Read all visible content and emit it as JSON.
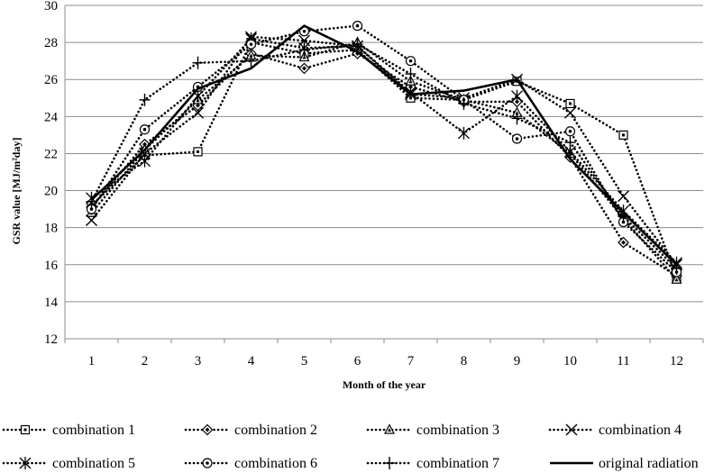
{
  "chart_data": {
    "type": "line",
    "xlabel": "Month of the year",
    "ylabel": "GSR value [MJ/m²day]",
    "categories": [
      "1",
      "2",
      "3",
      "4",
      "5",
      "6",
      "7",
      "8",
      "9",
      "10",
      "11",
      "12"
    ],
    "ylim": [
      12,
      30
    ],
    "yticks": [
      12,
      14,
      16,
      18,
      20,
      22,
      24,
      26,
      28,
      30
    ],
    "grid": "horizontal",
    "legend_position": "bottom",
    "series": [
      {
        "name": "combination 1",
        "marker": "square-dot",
        "dashed": true,
        "values": [
          19.2,
          21.9,
          22.1,
          28.0,
          27.4,
          27.6,
          25.0,
          24.9,
          25.9,
          24.7,
          23.0,
          15.3
        ]
      },
      {
        "name": "combination 2",
        "marker": "diamond",
        "dashed": true,
        "values": [
          19.1,
          22.5,
          24.6,
          27.4,
          26.6,
          27.4,
          25.6,
          24.8,
          24.8,
          21.8,
          17.2,
          15.4
        ]
      },
      {
        "name": "combination 3",
        "marker": "triangle",
        "dashed": true,
        "values": [
          18.8,
          22.2,
          24.9,
          27.3,
          27.2,
          28.0,
          25.9,
          24.9,
          24.2,
          22.0,
          18.5,
          15.2
        ]
      },
      {
        "name": "combination 4",
        "marker": "x",
        "dashed": true,
        "values": [
          18.4,
          22.0,
          24.2,
          28.3,
          28.1,
          27.8,
          25.2,
          25.0,
          26.0,
          24.2,
          19.7,
          16.0
        ]
      },
      {
        "name": "combination 5",
        "marker": "star",
        "dashed": true,
        "values": [
          19.6,
          21.6,
          25.1,
          28.2,
          27.7,
          27.8,
          25.3,
          23.1,
          25.1,
          22.1,
          18.9,
          16.1
        ]
      },
      {
        "name": "combination 6",
        "marker": "circle-dot",
        "dashed": true,
        "values": [
          19.0,
          23.3,
          25.6,
          27.9,
          28.6,
          28.9,
          27.0,
          24.9,
          22.8,
          23.2,
          18.3,
          15.6
        ]
      },
      {
        "name": "combination 7",
        "marker": "plus",
        "dashed": true,
        "values": [
          19.4,
          24.9,
          26.9,
          27.0,
          27.6,
          27.9,
          26.3,
          24.7,
          23.9,
          22.6,
          18.6,
          15.8
        ]
      },
      {
        "name": "original radiation",
        "marker": "none",
        "dashed": false,
        "values": [
          19.5,
          22.2,
          25.5,
          26.6,
          28.9,
          27.5,
          25.2,
          25.4,
          26.0,
          21.7,
          18.8,
          16.0
        ]
      }
    ]
  }
}
